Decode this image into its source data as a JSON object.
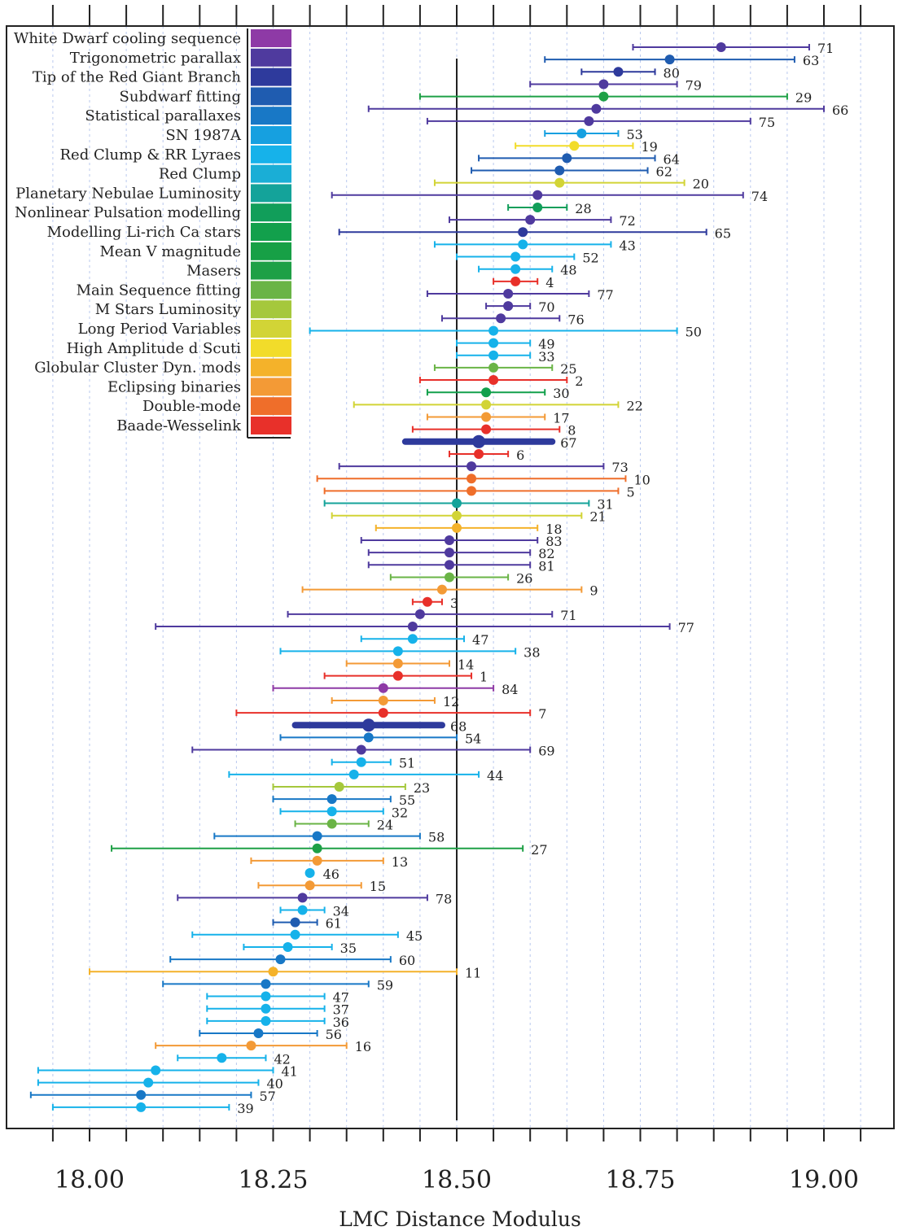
{
  "chart_data": {
    "type": "scatter",
    "subtype": "error-bar forest plot",
    "xlabel": "LMC Distance Modulus",
    "xlim": [
      17.95,
      19.05
    ],
    "xticks": [
      "18.00",
      "18.25",
      "18.50",
      "18.75",
      "19.00"
    ],
    "reference_line": 18.5,
    "grid": "vertical dashed minor lines",
    "legend_position": "top-left",
    "legend": [
      {
        "name": "White Dwarf cooling sequence",
        "color": "#8e3aa6"
      },
      {
        "name": "Trigonometric parallax",
        "color": "#4f3a9e"
      },
      {
        "name": "Tip of the Red Giant Branch",
        "color": "#2e3a9c"
      },
      {
        "name": "Subdwarf fitting",
        "color": "#1f5cb0"
      },
      {
        "name": "Statistical parallaxes",
        "color": "#1878c6"
      },
      {
        "name": "SN 1987A",
        "color": "#16a0e0"
      },
      {
        "name": "Red Clump  &  RR Lyraes",
        "color": "#16b2ea"
      },
      {
        "name": "Red Clump",
        "color": "#1aaed6"
      },
      {
        "name": "Planetary Nebulae Luminosity",
        "color": "#14a39a"
      },
      {
        "name": "Nonlinear Pulsation modelling",
        "color": "#119e5a"
      },
      {
        "name": "Modelling Li-rich Ca stars",
        "color": "#12a04c"
      },
      {
        "name": "Mean V magnitude",
        "color": "#17a046"
      },
      {
        "name": "Masers",
        "color": "#1ea046"
      },
      {
        "name": "Main Sequence fitting",
        "color": "#6ab446"
      },
      {
        "name": "M Stars Luminosity",
        "color": "#a5c83c"
      },
      {
        "name": "Long Period Variables",
        "color": "#d2d436"
      },
      {
        "name": "High Amplitude d Scuti",
        "color": "#f2dc2a"
      },
      {
        "name": "Globular Cluster Dyn. mods",
        "color": "#f4b22a"
      },
      {
        "name": "Eclipsing binaries",
        "color": "#f39a36"
      },
      {
        "name": "Double-mode",
        "color": "#ef6e2a"
      },
      {
        "name": "Baade-Wesselink",
        "color": "#e8302a"
      }
    ],
    "points": [
      {
        "label": "71",
        "value": 18.86,
        "lo": 18.74,
        "hi": 18.98,
        "color": "#4f3a9e"
      },
      {
        "label": "63",
        "value": 18.79,
        "lo": 18.62,
        "hi": 18.96,
        "color": "#1f5cb0"
      },
      {
        "label": "80",
        "value": 18.72,
        "lo": 18.67,
        "hi": 18.77,
        "color": "#2e3a9c"
      },
      {
        "label": "79",
        "value": 18.7,
        "lo": 18.6,
        "hi": 18.8,
        "color": "#4f3a9e"
      },
      {
        "label": "29",
        "value": 18.7,
        "lo": 18.45,
        "hi": 18.95,
        "color": "#1ea046"
      },
      {
        "label": "66",
        "value": 18.69,
        "lo": 18.38,
        "hi": 19.0,
        "color": "#4f3a9e"
      },
      {
        "label": "75",
        "value": 18.68,
        "lo": 18.46,
        "hi": 18.9,
        "color": "#4f3a9e"
      },
      {
        "label": "53",
        "value": 18.67,
        "lo": 18.62,
        "hi": 18.72,
        "color": "#16a0e0"
      },
      {
        "label": "19",
        "value": 18.66,
        "lo": 18.58,
        "hi": 18.74,
        "color": "#f2dc2a"
      },
      {
        "label": "64",
        "value": 18.65,
        "lo": 18.53,
        "hi": 18.77,
        "color": "#1f5cb0"
      },
      {
        "label": "62",
        "value": 18.64,
        "lo": 18.52,
        "hi": 18.76,
        "color": "#1f5cb0"
      },
      {
        "label": "20",
        "value": 18.64,
        "lo": 18.47,
        "hi": 18.81,
        "color": "#d2d436"
      },
      {
        "label": "74",
        "value": 18.61,
        "lo": 18.33,
        "hi": 18.89,
        "color": "#4f3a9e"
      },
      {
        "label": "28",
        "value": 18.61,
        "lo": 18.57,
        "hi": 18.65,
        "color": "#119e5a"
      },
      {
        "label": "72",
        "value": 18.6,
        "lo": 18.49,
        "hi": 18.71,
        "color": "#4f3a9e"
      },
      {
        "label": "65",
        "value": 18.59,
        "lo": 18.34,
        "hi": 18.84,
        "color": "#2e3a9c"
      },
      {
        "label": "43",
        "value": 18.59,
        "lo": 18.47,
        "hi": 18.71,
        "color": "#16b2ea"
      },
      {
        "label": "52",
        "value": 18.58,
        "lo": 18.5,
        "hi": 18.66,
        "color": "#16b2ea"
      },
      {
        "label": "48",
        "value": 18.58,
        "lo": 18.53,
        "hi": 18.63,
        "color": "#16b2ea"
      },
      {
        "label": "4",
        "value": 18.58,
        "lo": 18.55,
        "hi": 18.61,
        "color": "#e8302a"
      },
      {
        "label": "77",
        "value": 18.57,
        "lo": 18.46,
        "hi": 18.68,
        "color": "#4f3a9e"
      },
      {
        "label": "70",
        "value": 18.57,
        "lo": 18.54,
        "hi": 18.6,
        "color": "#4f3a9e"
      },
      {
        "label": "76",
        "value": 18.56,
        "lo": 18.48,
        "hi": 18.64,
        "color": "#4f3a9e"
      },
      {
        "label": "50",
        "value": 18.55,
        "lo": 18.3,
        "hi": 18.8,
        "color": "#16b2ea"
      },
      {
        "label": "49",
        "value": 18.55,
        "lo": 18.5,
        "hi": 18.6,
        "color": "#16b2ea"
      },
      {
        "label": "33",
        "value": 18.55,
        "lo": 18.5,
        "hi": 18.6,
        "color": "#16b2ea"
      },
      {
        "label": "25",
        "value": 18.55,
        "lo": 18.47,
        "hi": 18.63,
        "color": "#6ab446"
      },
      {
        "label": "2",
        "value": 18.55,
        "lo": 18.45,
        "hi": 18.65,
        "color": "#e8302a"
      },
      {
        "label": "30",
        "value": 18.54,
        "lo": 18.46,
        "hi": 18.62,
        "color": "#12a04c"
      },
      {
        "label": "22",
        "value": 18.54,
        "lo": 18.36,
        "hi": 18.72,
        "color": "#d2d436"
      },
      {
        "label": "17",
        "value": 18.54,
        "lo": 18.46,
        "hi": 18.62,
        "color": "#f39a36"
      },
      {
        "label": "8",
        "value": 18.54,
        "lo": 18.44,
        "hi": 18.64,
        "color": "#e8302a"
      },
      {
        "label": "67",
        "value": 18.53,
        "lo": 18.43,
        "hi": 18.63,
        "color": "#2e3a9c",
        "thick": true
      },
      {
        "label": "6",
        "value": 18.53,
        "lo": 18.49,
        "hi": 18.57,
        "color": "#e8302a"
      },
      {
        "label": "73",
        "value": 18.52,
        "lo": 18.34,
        "hi": 18.7,
        "color": "#4f3a9e"
      },
      {
        "label": "10",
        "value": 18.52,
        "lo": 18.31,
        "hi": 18.73,
        "color": "#ef6e2a"
      },
      {
        "label": "5",
        "value": 18.52,
        "lo": 18.32,
        "hi": 18.72,
        "color": "#ef6e2a"
      },
      {
        "label": "31",
        "value": 18.5,
        "lo": 18.32,
        "hi": 18.68,
        "color": "#14a39a"
      },
      {
        "label": "21",
        "value": 18.5,
        "lo": 18.33,
        "hi": 18.67,
        "color": "#d2d436"
      },
      {
        "label": "18",
        "value": 18.5,
        "lo": 18.39,
        "hi": 18.61,
        "color": "#f4b22a"
      },
      {
        "label": "83",
        "value": 18.49,
        "lo": 18.37,
        "hi": 18.61,
        "color": "#4f3a9e"
      },
      {
        "label": "82",
        "value": 18.49,
        "lo": 18.38,
        "hi": 18.6,
        "color": "#4f3a9e"
      },
      {
        "label": "81",
        "value": 18.49,
        "lo": 18.38,
        "hi": 18.6,
        "color": "#4f3a9e"
      },
      {
        "label": "26",
        "value": 18.49,
        "lo": 18.41,
        "hi": 18.57,
        "color": "#6ab446"
      },
      {
        "label": "9",
        "value": 18.48,
        "lo": 18.29,
        "hi": 18.67,
        "color": "#f39a36"
      },
      {
        "label": "3",
        "value": 18.46,
        "lo": 18.44,
        "hi": 18.48,
        "color": "#e8302a"
      },
      {
        "label": "71",
        "value": 18.45,
        "lo": 18.27,
        "hi": 18.63,
        "color": "#4f3a9e"
      },
      {
        "label": "77",
        "value": 18.44,
        "lo": 18.09,
        "hi": 18.79,
        "color": "#4f3a9e"
      },
      {
        "label": "47",
        "value": 18.44,
        "lo": 18.37,
        "hi": 18.51,
        "color": "#16b2ea"
      },
      {
        "label": "38",
        "value": 18.42,
        "lo": 18.26,
        "hi": 18.58,
        "color": "#16b2ea"
      },
      {
        "label": "14",
        "value": 18.42,
        "lo": 18.35,
        "hi": 18.49,
        "color": "#f39a36"
      },
      {
        "label": "1",
        "value": 18.42,
        "lo": 18.32,
        "hi": 18.52,
        "color": "#e8302a"
      },
      {
        "label": "84",
        "value": 18.4,
        "lo": 18.25,
        "hi": 18.55,
        "color": "#8e3aa6"
      },
      {
        "label": "12",
        "value": 18.4,
        "lo": 18.33,
        "hi": 18.47,
        "color": "#f39a36"
      },
      {
        "label": "7",
        "value": 18.4,
        "lo": 18.2,
        "hi": 18.6,
        "color": "#e8302a"
      },
      {
        "label": "68",
        "value": 18.38,
        "lo": 18.28,
        "hi": 18.48,
        "color": "#2e3a9c",
        "thick": true
      },
      {
        "label": "54",
        "value": 18.38,
        "lo": 18.26,
        "hi": 18.5,
        "color": "#1878c6"
      },
      {
        "label": "69",
        "value": 18.37,
        "lo": 18.14,
        "hi": 18.6,
        "color": "#4f3a9e"
      },
      {
        "label": "51",
        "value": 18.37,
        "lo": 18.33,
        "hi": 18.41,
        "color": "#16b2ea"
      },
      {
        "label": "44",
        "value": 18.36,
        "lo": 18.19,
        "hi": 18.53,
        "color": "#16b2ea"
      },
      {
        "label": "23",
        "value": 18.34,
        "lo": 18.25,
        "hi": 18.43,
        "color": "#a5c83c"
      },
      {
        "label": "55",
        "value": 18.33,
        "lo": 18.25,
        "hi": 18.41,
        "color": "#1878c6"
      },
      {
        "label": "32",
        "value": 18.33,
        "lo": 18.26,
        "hi": 18.4,
        "color": "#16b2ea"
      },
      {
        "label": "24",
        "value": 18.33,
        "lo": 18.28,
        "hi": 18.38,
        "color": "#6ab446"
      },
      {
        "label": "58",
        "value": 18.31,
        "lo": 18.17,
        "hi": 18.45,
        "color": "#1878c6"
      },
      {
        "label": "27",
        "value": 18.31,
        "lo": 18.03,
        "hi": 18.59,
        "color": "#1ea046"
      },
      {
        "label": "13",
        "value": 18.31,
        "lo": 18.22,
        "hi": 18.4,
        "color": "#f39a36"
      },
      {
        "label": "46",
        "value": 18.3,
        "lo": 18.3,
        "hi": 18.3,
        "color": "#16b2ea"
      },
      {
        "label": "15",
        "value": 18.3,
        "lo": 18.23,
        "hi": 18.37,
        "color": "#f39a36"
      },
      {
        "label": "78",
        "value": 18.29,
        "lo": 18.12,
        "hi": 18.46,
        "color": "#4f3a9e"
      },
      {
        "label": "34",
        "value": 18.29,
        "lo": 18.26,
        "hi": 18.32,
        "color": "#16b2ea"
      },
      {
        "label": "61",
        "value": 18.28,
        "lo": 18.25,
        "hi": 18.31,
        "color": "#1f5cb0"
      },
      {
        "label": "45",
        "value": 18.28,
        "lo": 18.14,
        "hi": 18.42,
        "color": "#16b2ea"
      },
      {
        "label": "35",
        "value": 18.27,
        "lo": 18.21,
        "hi": 18.33,
        "color": "#16b2ea"
      },
      {
        "label": "60",
        "value": 18.26,
        "lo": 18.11,
        "hi": 18.41,
        "color": "#1878c6"
      },
      {
        "label": "11",
        "value": 18.25,
        "lo": 18.0,
        "hi": 18.5,
        "color": "#f4b22a"
      },
      {
        "label": "59",
        "value": 18.24,
        "lo": 18.1,
        "hi": 18.38,
        "color": "#1878c6"
      },
      {
        "label": "47",
        "value": 18.24,
        "lo": 18.16,
        "hi": 18.32,
        "color": "#16b2ea"
      },
      {
        "label": "37",
        "value": 18.24,
        "lo": 18.16,
        "hi": 18.32,
        "color": "#16b2ea"
      },
      {
        "label": "36",
        "value": 18.24,
        "lo": 18.16,
        "hi": 18.32,
        "color": "#16b2ea"
      },
      {
        "label": "56",
        "value": 18.23,
        "lo": 18.15,
        "hi": 18.31,
        "color": "#1878c6"
      },
      {
        "label": "16",
        "value": 18.22,
        "lo": 18.09,
        "hi": 18.35,
        "color": "#f39a36"
      },
      {
        "label": "42",
        "value": 18.18,
        "lo": 18.12,
        "hi": 18.24,
        "color": "#16b2ea"
      },
      {
        "label": "41",
        "value": 18.09,
        "lo": 17.93,
        "hi": 18.25,
        "color": "#16b2ea"
      },
      {
        "label": "40",
        "value": 18.08,
        "lo": 17.93,
        "hi": 18.23,
        "color": "#16b2ea"
      },
      {
        "label": "57",
        "value": 18.07,
        "lo": 17.92,
        "hi": 18.22,
        "color": "#1878c6"
      },
      {
        "label": "39",
        "value": 18.07,
        "lo": 17.95,
        "hi": 18.19,
        "color": "#16b2ea"
      }
    ]
  }
}
